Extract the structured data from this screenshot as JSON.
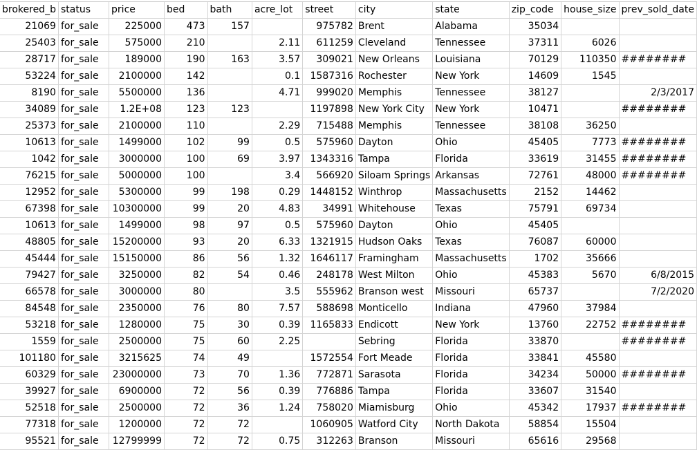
{
  "columns": [
    "brokered_b",
    "status",
    "price",
    "bed",
    "bath",
    "acre_lot",
    "street",
    "city",
    "state",
    "zip_code",
    "house_size",
    "prev_sold_date"
  ],
  "rows": [
    [
      "21069",
      "for_sale",
      "225000",
      "473",
      "157",
      "",
      "975782",
      "Brent",
      "Alabama",
      "35034",
      "",
      ""
    ],
    [
      "25403",
      "for_sale",
      "575000",
      "210",
      "",
      "2.11",
      "611259",
      "Cleveland",
      "Tennessee",
      "37311",
      "6026",
      ""
    ],
    [
      "28717",
      "for_sale",
      "189000",
      "190",
      "163",
      "3.57",
      "309021",
      "New Orleans",
      "Louisiana",
      "70129",
      "110350",
      "########"
    ],
    [
      "53224",
      "for_sale",
      "2100000",
      "142",
      "",
      "0.1",
      "1587316",
      "Rochester",
      "New York",
      "14609",
      "1545",
      ""
    ],
    [
      "8190",
      "for_sale",
      "5500000",
      "136",
      "",
      "4.71",
      "999020",
      "Memphis",
      "Tennessee",
      "38127",
      "",
      "2/3/2017"
    ],
    [
      "34089",
      "for_sale",
      "1.2E+08",
      "123",
      "123",
      "",
      "1197898",
      "New York City",
      "New York",
      "10471",
      "",
      "########"
    ],
    [
      "25373",
      "for_sale",
      "2100000",
      "110",
      "",
      "2.29",
      "715488",
      "Memphis",
      "Tennessee",
      "38108",
      "36250",
      ""
    ],
    [
      "10613",
      "for_sale",
      "1499000",
      "102",
      "99",
      "0.5",
      "575960",
      "Dayton",
      "Ohio",
      "45405",
      "7773",
      "########"
    ],
    [
      "1042",
      "for_sale",
      "3000000",
      "100",
      "69",
      "3.97",
      "1343316",
      "Tampa",
      "Florida",
      "33619",
      "31455",
      "########"
    ],
    [
      "76215",
      "for_sale",
      "5000000",
      "100",
      "",
      "3.4",
      "566920",
      "Siloam Springs",
      "Arkansas",
      "72761",
      "48000",
      "########"
    ],
    [
      "12952",
      "for_sale",
      "5300000",
      "99",
      "198",
      "0.29",
      "1448152",
      "Winthrop",
      "Massachusetts",
      "2152",
      "14462",
      ""
    ],
    [
      "67398",
      "for_sale",
      "10300000",
      "99",
      "20",
      "4.83",
      "34991",
      "Whitehouse",
      "Texas",
      "75791",
      "69734",
      ""
    ],
    [
      "10613",
      "for_sale",
      "1499000",
      "98",
      "97",
      "0.5",
      "575960",
      "Dayton",
      "Ohio",
      "45405",
      "",
      ""
    ],
    [
      "48805",
      "for_sale",
      "15200000",
      "93",
      "20",
      "6.33",
      "1321915",
      "Hudson Oaks",
      "Texas",
      "76087",
      "60000",
      ""
    ],
    [
      "45444",
      "for_sale",
      "15150000",
      "86",
      "56",
      "1.32",
      "1646117",
      "Framingham",
      "Massachusetts",
      "1702",
      "35666",
      ""
    ],
    [
      "79427",
      "for_sale",
      "3250000",
      "82",
      "54",
      "0.46",
      "248178",
      "West Milton",
      "Ohio",
      "45383",
      "5670",
      "6/8/2015"
    ],
    [
      "66578",
      "for_sale",
      "3000000",
      "80",
      "",
      "3.5",
      "555962",
      "Branson west",
      "Missouri",
      "65737",
      "",
      "7/2/2020"
    ],
    [
      "84548",
      "for_sale",
      "2350000",
      "76",
      "80",
      "7.57",
      "588698",
      "Monticello",
      "Indiana",
      "47960",
      "37984",
      ""
    ],
    [
      "53218",
      "for_sale",
      "1280000",
      "75",
      "30",
      "0.39",
      "1165833",
      "Endicott",
      "New York",
      "13760",
      "22752",
      "########"
    ],
    [
      "1559",
      "for_sale",
      "2500000",
      "75",
      "60",
      "2.25",
      "",
      "Sebring",
      "Florida",
      "33870",
      "",
      "########"
    ],
    [
      "101180",
      "for_sale",
      "3215625",
      "74",
      "49",
      "",
      "1572554",
      "Fort Meade",
      "Florida",
      "33841",
      "45580",
      ""
    ],
    [
      "60329",
      "for_sale",
      "23000000",
      "73",
      "70",
      "1.36",
      "772871",
      "Sarasota",
      "Florida",
      "34234",
      "50000",
      "########"
    ],
    [
      "39927",
      "for_sale",
      "6900000",
      "72",
      "56",
      "0.39",
      "776886",
      "Tampa",
      "Florida",
      "33607",
      "31540",
      ""
    ],
    [
      "52518",
      "for_sale",
      "2500000",
      "72",
      "36",
      "1.24",
      "758020",
      "Miamisburg",
      "Ohio",
      "45342",
      "17937",
      "########"
    ],
    [
      "77318",
      "for_sale",
      "1200000",
      "72",
      "72",
      "",
      "1060905",
      "Watford City",
      "North Dakota",
      "58854",
      "15504",
      ""
    ],
    [
      "95521",
      "for_sale",
      "12799999",
      "72",
      "72",
      "0.75",
      "312263",
      "Branson",
      "Missouri",
      "65616",
      "29568",
      ""
    ]
  ]
}
